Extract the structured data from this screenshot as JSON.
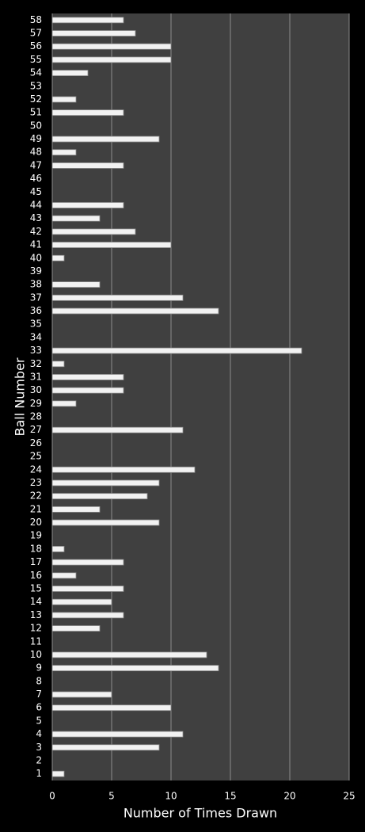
{
  "chart_data": {
    "type": "barh",
    "x_label": "Number of Times Drawn",
    "y_label": "Ball Number",
    "categories": [
      "1",
      "2",
      "3",
      "4",
      "5",
      "6",
      "7",
      "8",
      "9",
      "10",
      "11",
      "12",
      "13",
      "14",
      "15",
      "16",
      "17",
      "18",
      "19",
      "20",
      "21",
      "22",
      "23",
      "24",
      "25",
      "26",
      "27",
      "28",
      "29",
      "30",
      "31",
      "32",
      "33",
      "34",
      "35",
      "36",
      "37",
      "38",
      "39",
      "40",
      "41",
      "42",
      "43",
      "44",
      "45",
      "46",
      "47",
      "48",
      "49",
      "50",
      "51",
      "52",
      "53",
      "54",
      "55",
      "56",
      "57",
      "58"
    ],
    "values": [
      1,
      0,
      9,
      11,
      0,
      10,
      5,
      0,
      14,
      13,
      0,
      4,
      6,
      5,
      6,
      2,
      6,
      1,
      0,
      9,
      4,
      8,
      9,
      12,
      0,
      0,
      11,
      0,
      2,
      6,
      6,
      1,
      21,
      0,
      0,
      14,
      11,
      4,
      0,
      1,
      10,
      7,
      4,
      6,
      0,
      0,
      6,
      2,
      9,
      0,
      6,
      2,
      0,
      3,
      10,
      10,
      7,
      6
    ],
    "color": "#f2f2f2",
    "xlim": [
      0,
      25
    ],
    "xticks": [
      0,
      5,
      10,
      15,
      20,
      25
    ],
    "grid": true
  }
}
